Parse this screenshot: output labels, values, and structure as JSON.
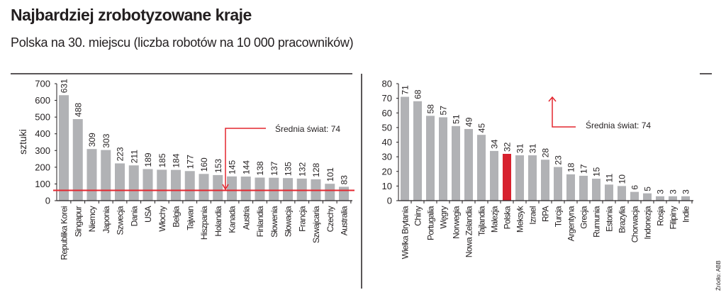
{
  "header": {
    "title": "Najbardziej zrobotyzowane kraje",
    "subtitle": "Polska na 30. miejscu (liczba robotów na 10 000 pracowników)"
  },
  "source": "Źródło: ABB",
  "colors": {
    "bar": "#b1b2b5",
    "highlight": "#d7212e",
    "average": "#e3262f"
  },
  "chart_data": [
    {
      "type": "bar",
      "ylabel": "sztuki",
      "ylim": [
        0,
        700
      ],
      "yticks": [
        0,
        100,
        200,
        300,
        400,
        500,
        600,
        700
      ],
      "categories": [
        "Republika Korei",
        "Singapur",
        "Niemcy",
        "Japonia",
        "Szwecja",
        "Dania",
        "USA",
        "Włochy",
        "Belgia",
        "Tajwan",
        "Hiszpania",
        "Holandia",
        "Kanada",
        "Austria",
        "Finlandia",
        "Słowenia",
        "Słowacja",
        "Francja",
        "Szwajcaria",
        "Czechy",
        "Australia"
      ],
      "values": [
        631,
        488,
        309,
        303,
        223,
        211,
        189,
        185,
        184,
        177,
        160,
        153,
        145,
        144,
        138,
        137,
        135,
        132,
        128,
        101,
        83
      ],
      "average": {
        "label": "Średnia świat: 74",
        "value": 74
      }
    },
    {
      "type": "bar",
      "ylim": [
        0,
        80
      ],
      "yticks": [
        0,
        10,
        20,
        30,
        40,
        50,
        60,
        70,
        80
      ],
      "categories": [
        "Wielka Brytania",
        "Chiny",
        "Portugalia",
        "Węgry",
        "Norwegia",
        "Nowa Zelandia",
        "Tajlandia",
        "Malezja",
        "Polska",
        "Meksyk",
        "Izrael",
        "RPA",
        "Turcja",
        "Argentyna",
        "Grecja",
        "Rumunia",
        "Estonia",
        "Brazylia",
        "Chorwacja",
        "Indonezja",
        "Rosja",
        "Filipiny",
        "Indie"
      ],
      "values": [
        71,
        68,
        58,
        57,
        51,
        49,
        45,
        34,
        32,
        31,
        31,
        28,
        23,
        18,
        17,
        15,
        11,
        10,
        6,
        5,
        3,
        3,
        3
      ],
      "highlight": "Polska",
      "average": {
        "label": "Średnia świat: 74",
        "value": 74
      }
    }
  ]
}
